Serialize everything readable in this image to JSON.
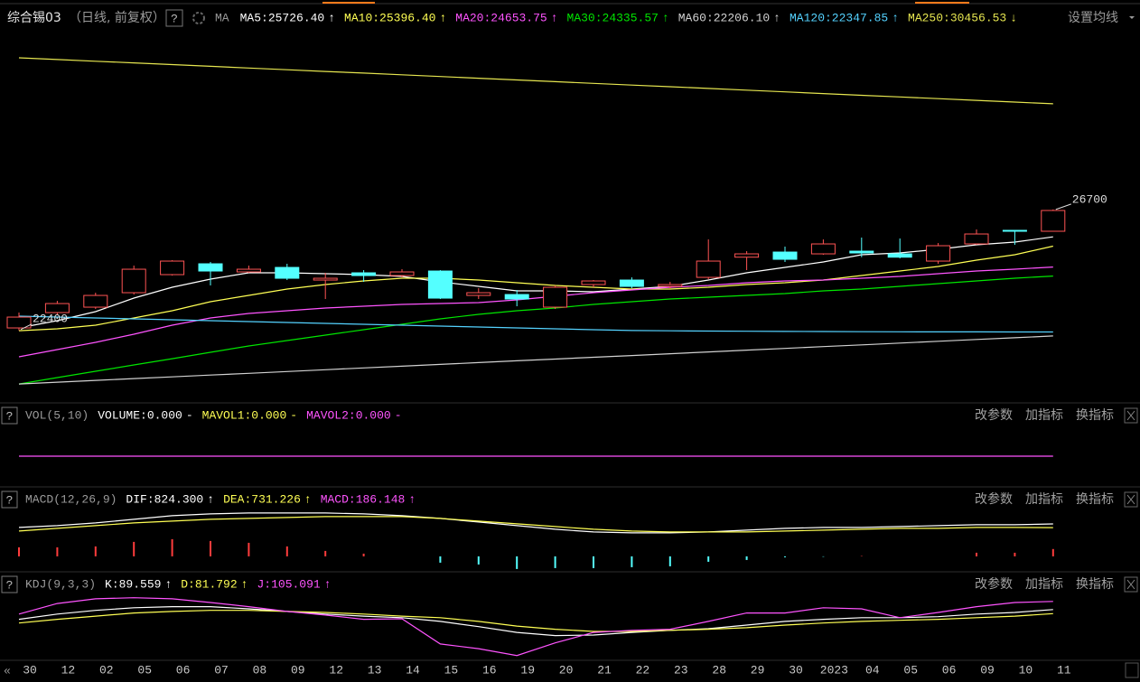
{
  "header": {
    "symbol": "综合锡03",
    "period": "（日线, 前复权）",
    "help": "?",
    "ma": "MA",
    "settings": "设置均线"
  },
  "chart_data": [
    {
      "type": "candlestick",
      "categories": [
        "30",
        "12",
        "02",
        "05",
        "06",
        "07",
        "08",
        "09",
        "12",
        "13",
        "14",
        "15",
        "16",
        "19",
        "20",
        "21",
        "22",
        "23",
        "28",
        "29",
        "30",
        "2023",
        "04",
        "05",
        "06",
        "09",
        "10",
        "11"
      ],
      "open": [
        22491,
        23036,
        23229,
        23743,
        24385,
        24770,
        24481,
        24641,
        24192,
        24449,
        24352,
        24513,
        23646,
        23678,
        23229,
        24032,
        24192,
        23967,
        24288,
        25005,
        25187,
        25123,
        25219,
        25123,
        24866,
        25476,
        25958,
        25926
      ],
      "high": [
        23036,
        23454,
        23743,
        24706,
        24898,
        24834,
        24706,
        24770,
        24449,
        24545,
        24577,
        24545,
        23903,
        23839,
        23999,
        24192,
        24288,
        24128,
        25636,
        25219,
        25380,
        25636,
        25701,
        25669,
        25508,
        25990,
        25958,
        26700
      ],
      "low": [
        22400,
        22940,
        23165,
        23678,
        24352,
        23999,
        24449,
        24192,
        23518,
        24128,
        24288,
        23518,
        23518,
        23261,
        23165,
        23935,
        23903,
        23903,
        24224,
        24545,
        24834,
        25091,
        25005,
        24962,
        24770,
        25444,
        25444,
        25926
      ],
      "close": [
        22876,
        23357,
        23646,
        24577,
        24866,
        24513,
        24577,
        24256,
        24256,
        24352,
        24481,
        23550,
        23743,
        23518,
        23935,
        24160,
        23967,
        24032,
        24866,
        25123,
        24930,
        25476,
        25155,
        25005,
        25412,
        25829,
        25926,
        26664
      ],
      "up_color": "#ff5454",
      "down_color": "#54ffff",
      "ylim": [
        19860,
        33180
      ],
      "series": [
        {
          "name": "MA5:25726.40",
          "trend": "↑",
          "color": "#ffffff",
          "values": [
            22491,
            22748,
            23069,
            23550,
            23935,
            24224,
            24449,
            24449,
            24417,
            24385,
            24320,
            24128,
            23967,
            23807,
            23807,
            23775,
            23871,
            23967,
            24192,
            24449,
            24641,
            24834,
            25091,
            25155,
            25283,
            25444,
            25540,
            25726.4
          ]
        },
        {
          "name": "MA10:25396.40",
          "trend": "↑",
          "color": "#ffff54",
          "values": [
            22394,
            22459,
            22587,
            22844,
            23101,
            23422,
            23646,
            23871,
            24032,
            24160,
            24256,
            24256,
            24192,
            24096,
            23999,
            23935,
            23871,
            23871,
            23935,
            24032,
            24096,
            24192,
            24353,
            24513,
            24674,
            24898,
            25091,
            25396.4
          ]
        },
        {
          "name": "MA20:24653.75",
          "trend": "↑",
          "color": "#ff54ff",
          "values": [
            21464,
            21721,
            21977,
            22266,
            22587,
            22844,
            23004,
            23101,
            23197,
            23261,
            23325,
            23357,
            23390,
            23486,
            23614,
            23743,
            23839,
            23935,
            23999,
            24096,
            24160,
            24192,
            24256,
            24320,
            24417,
            24513,
            24577,
            24653.75
          ]
        },
        {
          "name": "MA30:24335.57",
          "trend": "↑",
          "color": "#00e600",
          "values": [
            20500,
            20725,
            20950,
            21175,
            21399,
            21624,
            21849,
            22041,
            22234,
            22427,
            22619,
            22812,
            22972,
            23101,
            23197,
            23325,
            23422,
            23518,
            23582,
            23646,
            23710,
            23807,
            23871,
            23967,
            24064,
            24160,
            24256,
            24335.57
          ]
        },
        {
          "name": "MA60:22206.10",
          "trend": "↑",
          "color": "#d2d2d2",
          "values": [
            20500,
            20563,
            20626,
            20690,
            20753,
            20816,
            20879,
            20942,
            21006,
            21069,
            21132,
            21195,
            21258,
            21322,
            21385,
            21448,
            21511,
            21574,
            21638,
            21701,
            21764,
            21827,
            21890,
            21954,
            22017,
            22080,
            22143,
            22206.1
          ]
        },
        {
          "name": "MA120:22347.85",
          "trend": "↑",
          "color": "#54d2ff",
          "values": [
            22908,
            22876,
            22844,
            22812,
            22780,
            22748,
            22715,
            22683,
            22651,
            22619,
            22587,
            22555,
            22523,
            22491,
            22459,
            22427,
            22400,
            22390,
            22380,
            22372,
            22366,
            22362,
            22358,
            22355,
            22352,
            22350,
            22349,
            22347.85
          ]
        },
        {
          "name": "MA250:30456.53",
          "trend": "↓",
          "color": "#e6e650",
          "values": [
            32089,
            32029,
            31968,
            31908,
            31847,
            31787,
            31726,
            31666,
            31605,
            31545,
            31484,
            31424,
            31363,
            31303,
            31242,
            31182,
            31121,
            31061,
            31000,
            30940,
            30879,
            30819,
            30758,
            30698,
            30637,
            30577,
            30517,
            30456.53
          ]
        }
      ]
    },
    {
      "type": "line",
      "title": "VOL(5,10)",
      "buttons": [
        "改参数",
        "加指标",
        "换指标"
      ],
      "ylim": [
        -1,
        1
      ],
      "series": [
        {
          "name": "VOLUME:0.000",
          "trend": "-",
          "color": "#ffffff"
        },
        {
          "name": "MAVOL1:0.000",
          "trend": "-",
          "color": "#ffff54"
        },
        {
          "name": "MAVOL2:0.000",
          "trend": "-",
          "color": "#ff54ff",
          "values": [
            0,
            0,
            0,
            0,
            0,
            0,
            0,
            0,
            0,
            0,
            0,
            0,
            0,
            0,
            0,
            0,
            0,
            0,
            0,
            0,
            0,
            0,
            0,
            0,
            0,
            0,
            0,
            0
          ]
        }
      ]
    },
    {
      "type": "line",
      "title": "MACD(12,26,9)",
      "buttons": [
        "改参数",
        "加指标",
        "换指标"
      ],
      "ylim": [
        -370,
        1630
      ],
      "series": [
        {
          "name": "DIF:824.300",
          "trend": "↑",
          "color": "#ffffff",
          "values": [
            736,
            782,
            851,
            943,
            1035,
            1081,
            1104,
            1104,
            1104,
            1081,
            1035,
            966,
            874,
            782,
            690,
            621,
            598,
            598,
            621,
            667,
            713,
            736,
            736,
            759,
            782,
            805,
            805,
            824.3
          ]
        },
        {
          "name": "DEA:731.226",
          "trend": "↑",
          "color": "#ffff54",
          "values": [
            644,
            713,
            782,
            851,
            897,
            943,
            966,
            989,
            1012,
            1012,
            1012,
            966,
            897,
            828,
            759,
            690,
            644,
            621,
            621,
            621,
            644,
            667,
            690,
            713,
            713,
            736,
            736,
            731.226
          ]
        },
        {
          "name": "MACD:186.148",
          "trend": "↑",
          "color": "#ff54ff",
          "bars": true,
          "up_color": "#ff3c3c",
          "down_color": "#54ffff",
          "values": [
            230,
            230,
            253,
            368,
            437,
            391,
            345,
            253,
            138,
            69,
            0,
            -161,
            -207,
            -322,
            -299,
            -299,
            -276,
            -253,
            -138,
            -92,
            -23,
            -10,
            10,
            0,
            0,
            92,
            92,
            186.148
          ]
        }
      ]
    },
    {
      "type": "line",
      "title": "KDJ(9,3,3)",
      "buttons": [
        "改参数",
        "加指标",
        "换指标"
      ],
      "ylim": [
        -14,
        115
      ],
      "series": [
        {
          "name": "K:89.559",
          "trend": "↑",
          "color": "#ffffff",
          "values": [
            71,
            81,
            88,
            93,
            95,
            95,
            91,
            86,
            81,
            77,
            74,
            67,
            57,
            46,
            40,
            41,
            46,
            50,
            53,
            60,
            67,
            71,
            74,
            74,
            76,
            81,
            84,
            89.559
          ]
        },
        {
          "name": "D:81.792",
          "trend": "↑",
          "color": "#ffff54",
          "values": [
            64,
            71,
            77,
            83,
            86,
            88,
            88,
            86,
            84,
            81,
            77,
            74,
            67,
            58,
            52,
            48,
            48,
            50,
            52,
            55,
            60,
            64,
            67,
            69,
            71,
            74,
            77,
            81.792
          ]
        },
        {
          "name": "J:105.091",
          "trend": "↑",
          "color": "#ff54ff",
          "values": [
            81,
            101,
            110,
            112,
            110,
            103,
            95,
            86,
            79,
            71,
            72,
            24,
            15,
            2,
            26,
            46,
            50,
            52,
            67,
            83,
            83,
            93,
            91,
            74,
            84,
            95,
            103,
            105.091
          ]
        }
      ]
    }
  ]
}
